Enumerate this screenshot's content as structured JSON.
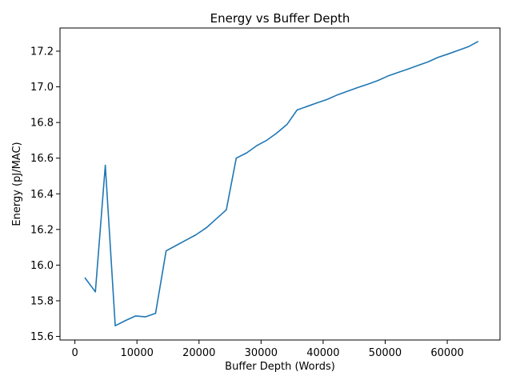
{
  "chart_data": {
    "type": "line",
    "title": "Energy vs Buffer Depth",
    "xlabel": "Buffer Depth (Words)",
    "ylabel": "Energy (pJ/MAC)",
    "xlim": [
      -2400,
      68500
    ],
    "ylim": [
      15.58,
      17.33
    ],
    "xticks": [
      0,
      10000,
      20000,
      30000,
      40000,
      50000,
      60000
    ],
    "yticks": [
      15.6,
      15.8,
      16.0,
      16.2,
      16.4,
      16.6,
      16.8,
      17.0,
      17.2
    ],
    "grid": false,
    "line_color": "#1f77b4",
    "series": [
      {
        "x": [
          1600,
          3300,
          4900,
          6500,
          8200,
          9800,
          11400,
          13000,
          14700,
          16300,
          17900,
          19500,
          21200,
          22800,
          24400,
          26000,
          27700,
          29300,
          30900,
          32500,
          34200,
          35800,
          37400,
          39000,
          40700,
          42300,
          43900,
          45500,
          47200,
          48800,
          50400,
          52000,
          53700,
          55300,
          56900,
          58500,
          60200,
          61800,
          63400,
          65000
        ],
        "y": [
          15.93,
          15.85,
          16.56,
          15.66,
          15.69,
          15.715,
          15.71,
          15.73,
          16.08,
          16.11,
          16.14,
          16.17,
          16.21,
          16.26,
          16.31,
          16.6,
          16.63,
          16.67,
          16.7,
          16.74,
          16.79,
          16.87,
          16.89,
          16.91,
          16.93,
          16.955,
          16.975,
          16.995,
          17.015,
          17.035,
          17.06,
          17.08,
          17.1,
          17.12,
          17.14,
          17.165,
          17.185,
          17.205,
          17.225,
          17.255
        ]
      }
    ]
  }
}
